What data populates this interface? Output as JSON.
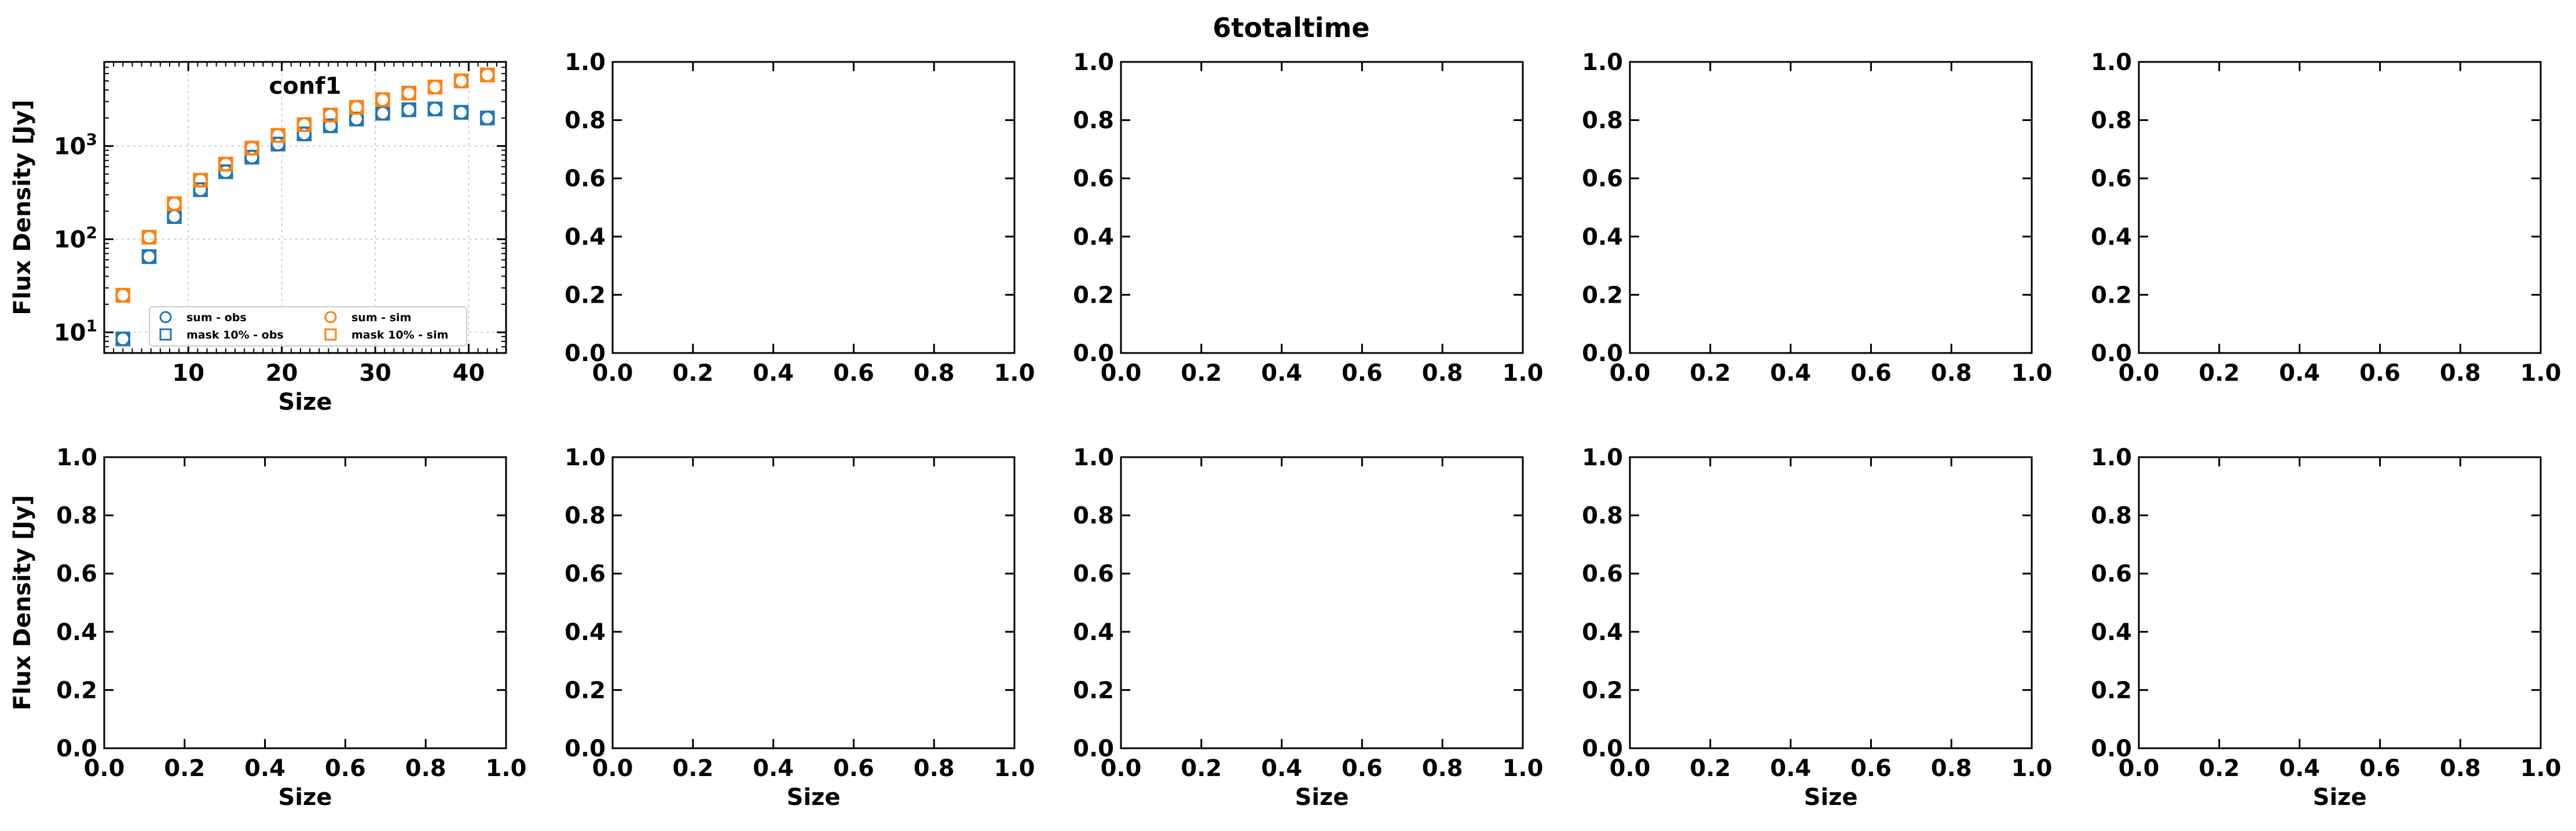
{
  "figure": {
    "title": "6totaltime"
  },
  "chart_data": [
    {
      "type": "scatter",
      "title": "conf1",
      "xlabel": "Size",
      "ylabel": "Flux Density [Jy]",
      "xlim": [
        1,
        44
      ],
      "ylim": [
        6,
        8000
      ],
      "yscale": "log",
      "x_ticks": [
        "10",
        "20",
        "30",
        "40"
      ],
      "y_ticks": [
        "10^1",
        "10^2",
        "10^3"
      ],
      "grid": true,
      "legend_position": "lower-right",
      "x": [
        3,
        5.8,
        8.5,
        11.3,
        14,
        16.8,
        19.6,
        22.4,
        25.2,
        28,
        30.8,
        33.6,
        36.4,
        39.2,
        42
      ],
      "series": [
        {
          "name": "sum - obs",
          "marker": "circle",
          "color": "#1f77b4",
          "values": [
            8.5,
            65,
            175,
            340,
            530,
            760,
            1050,
            1350,
            1650,
            1950,
            2250,
            2450,
            2500,
            2300,
            2000
          ]
        },
        {
          "name": "mask 10% - obs",
          "marker": "square",
          "color": "#1f77b4",
          "values": [
            8.5,
            65,
            175,
            340,
            530,
            760,
            1050,
            1350,
            1650,
            1950,
            2250,
            2450,
            2500,
            2300,
            2000
          ]
        },
        {
          "name": "sum - sim",
          "marker": "circle",
          "color": "#ff7f0e",
          "values": [
            25,
            105,
            240,
            430,
            640,
            950,
            1300,
            1700,
            2150,
            2600,
            3150,
            3700,
            4300,
            5000,
            5800
          ]
        },
        {
          "name": "mask 10% - sim",
          "marker": "square",
          "color": "#ff7f0e",
          "values": [
            25,
            105,
            240,
            430,
            640,
            950,
            1300,
            1700,
            2150,
            2600,
            3150,
            3700,
            4300,
            5000,
            5800
          ]
        }
      ]
    },
    {
      "type": "scatter",
      "xlim": [
        0,
        1
      ],
      "ylim": [
        0,
        1
      ],
      "x_ticks": [
        "0.0",
        "0.2",
        "0.4",
        "0.6",
        "0.8",
        "1.0"
      ],
      "y_ticks": [
        "0.0",
        "0.2",
        "0.4",
        "0.6",
        "0.8",
        "1.0"
      ],
      "xlabel": "",
      "ylabel": "",
      "series": []
    },
    {
      "type": "scatter",
      "xlim": [
        0,
        1
      ],
      "ylim": [
        0,
        1
      ],
      "x_ticks": [
        "0.0",
        "0.2",
        "0.4",
        "0.6",
        "0.8",
        "1.0"
      ],
      "y_ticks": [
        "0.0",
        "0.2",
        "0.4",
        "0.6",
        "0.8",
        "1.0"
      ],
      "xlabel": "",
      "ylabel": "",
      "series": []
    },
    {
      "type": "scatter",
      "xlim": [
        0,
        1
      ],
      "ylim": [
        0,
        1
      ],
      "x_ticks": [
        "0.0",
        "0.2",
        "0.4",
        "0.6",
        "0.8",
        "1.0"
      ],
      "y_ticks": [
        "0.0",
        "0.2",
        "0.4",
        "0.6",
        "0.8",
        "1.0"
      ],
      "xlabel": "",
      "ylabel": "",
      "series": []
    },
    {
      "type": "scatter",
      "xlim": [
        0,
        1
      ],
      "ylim": [
        0,
        1
      ],
      "x_ticks": [
        "0.0",
        "0.2",
        "0.4",
        "0.6",
        "0.8",
        "1.0"
      ],
      "y_ticks": [
        "0.0",
        "0.2",
        "0.4",
        "0.6",
        "0.8",
        "1.0"
      ],
      "xlabel": "",
      "ylabel": "",
      "series": []
    },
    {
      "type": "scatter",
      "xlim": [
        0,
        1
      ],
      "ylim": [
        0,
        1
      ],
      "x_ticks": [
        "0.0",
        "0.2",
        "0.4",
        "0.6",
        "0.8",
        "1.0"
      ],
      "y_ticks": [
        "0.0",
        "0.2",
        "0.4",
        "0.6",
        "0.8",
        "1.0"
      ],
      "xlabel": "Size",
      "ylabel": "Flux Density [Jy]",
      "series": []
    },
    {
      "type": "scatter",
      "xlim": [
        0,
        1
      ],
      "ylim": [
        0,
        1
      ],
      "x_ticks": [
        "0.0",
        "0.2",
        "0.4",
        "0.6",
        "0.8",
        "1.0"
      ],
      "y_ticks": [
        "0.0",
        "0.2",
        "0.4",
        "0.6",
        "0.8",
        "1.0"
      ],
      "xlabel": "Size",
      "ylabel": "",
      "series": []
    },
    {
      "type": "scatter",
      "xlim": [
        0,
        1
      ],
      "ylim": [
        0,
        1
      ],
      "x_ticks": [
        "0.0",
        "0.2",
        "0.4",
        "0.6",
        "0.8",
        "1.0"
      ],
      "y_ticks": [
        "0.0",
        "0.2",
        "0.4",
        "0.6",
        "0.8",
        "1.0"
      ],
      "xlabel": "Size",
      "ylabel": "",
      "series": []
    },
    {
      "type": "scatter",
      "xlim": [
        0,
        1
      ],
      "ylim": [
        0,
        1
      ],
      "x_ticks": [
        "0.0",
        "0.2",
        "0.4",
        "0.6",
        "0.8",
        "1.0"
      ],
      "y_ticks": [
        "0.0",
        "0.2",
        "0.4",
        "0.6",
        "0.8",
        "1.0"
      ],
      "xlabel": "Size",
      "ylabel": "",
      "series": []
    },
    {
      "type": "scatter",
      "xlim": [
        0,
        1
      ],
      "ylim": [
        0,
        1
      ],
      "x_ticks": [
        "0.0",
        "0.2",
        "0.4",
        "0.6",
        "0.8",
        "1.0"
      ],
      "y_ticks": [
        "0.0",
        "0.2",
        "0.4",
        "0.6",
        "0.8",
        "1.0"
      ],
      "xlabel": "Size",
      "ylabel": "",
      "series": []
    }
  ]
}
